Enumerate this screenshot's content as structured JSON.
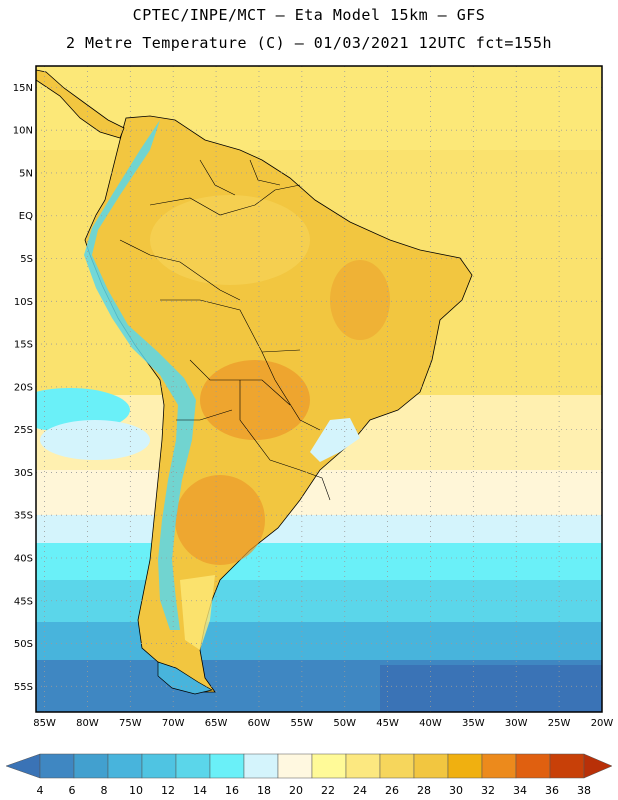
{
  "header": {
    "line1": "CPTEC/INPE/MCT –  Eta Model 15km – GFS",
    "line2": "2 Metre Temperature (C) – 01/03/2021 12UTC fct=155h"
  },
  "axes": {
    "lat_labels": [
      "15N",
      "10N",
      "5N",
      "EQ",
      "5S",
      "10S",
      "15S",
      "20S",
      "25S",
      "30S",
      "35S",
      "40S",
      "45S",
      "50S",
      "55S"
    ],
    "lat_values": [
      15,
      10,
      5,
      0,
      -5,
      -10,
      -15,
      -20,
      -25,
      -30,
      -35,
      -40,
      -45,
      -50,
      -55
    ],
    "lon_labels": [
      "85W",
      "80W",
      "75W",
      "70W",
      "65W",
      "60W",
      "55W",
      "50W",
      "45W",
      "40W",
      "35W",
      "30W",
      "25W",
      "20W"
    ],
    "lon_values": [
      -85,
      -80,
      -75,
      -70,
      -65,
      -60,
      -55,
      -50,
      -45,
      -40,
      -35,
      -30,
      -25,
      -20
    ],
    "lat_range": [
      -58,
      17.5
    ],
    "lon_range": [
      -86,
      -20
    ]
  },
  "colorbar": {
    "labels": [
      "4",
      "6",
      "8",
      "10",
      "12",
      "14",
      "16",
      "18",
      "20",
      "22",
      "24",
      "26",
      "28",
      "30",
      "32",
      "34",
      "36",
      "38"
    ],
    "colors": [
      "#3a73b6",
      "#3f87c2",
      "#42a0cf",
      "#48b4dc",
      "#4fc4e2",
      "#5bd6ea",
      "#6af0f8",
      "#d4f4fc",
      "#fff8e0",
      "#fffa98",
      "#fce880",
      "#f6d65c",
      "#f2c640",
      "#f0b010",
      "#ec8a1c",
      "#e06010",
      "#c84008",
      "#b83008"
    ]
  },
  "colors": {
    "ocean_warm": "#fce878",
    "ocean_hot": "#f6d65c",
    "land_warm": "#f2c640",
    "land_hot": "#ec9a2a",
    "andes_cold": "#5bd6ea",
    "ocean_cold": "#3a73b6",
    "grid": "#9a9a9a"
  }
}
